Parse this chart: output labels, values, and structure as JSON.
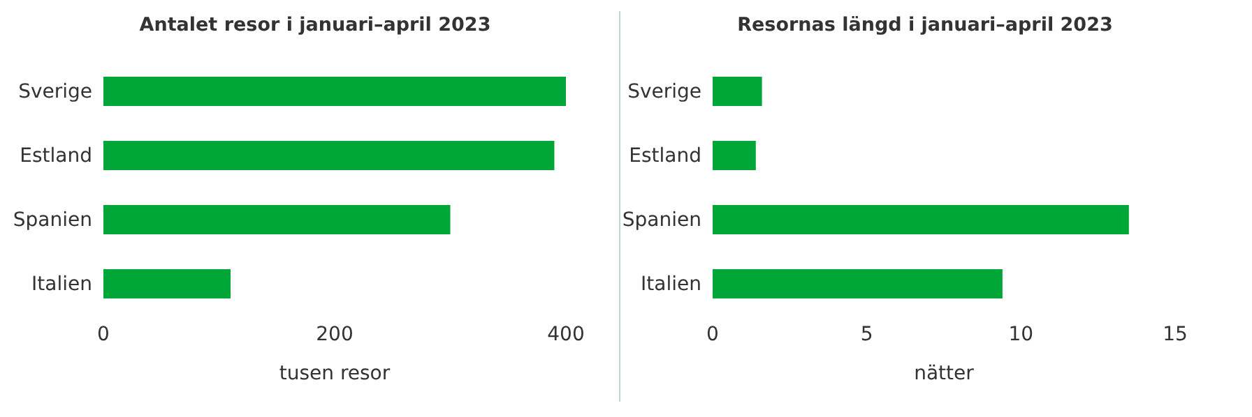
{
  "chart_data": [
    {
      "type": "bar",
      "orientation": "horizontal",
      "title": "Antalet resor i januari–april 2023",
      "xlabel": "tusen resor",
      "categories": [
        "Sverige",
        "Estland",
        "Spanien",
        "Italien"
      ],
      "values": [
        400,
        390,
        300,
        110
      ],
      "color": "#00a637",
      "xlim": [
        0,
        400
      ],
      "xticks": [
        0,
        200,
        400
      ],
      "grid": false
    },
    {
      "type": "bar",
      "orientation": "horizontal",
      "title": "Resornas längd i januari–april 2023",
      "xlabel": "nätter",
      "categories": [
        "Sverige",
        "Estland",
        "Spanien",
        "Italien"
      ],
      "values": [
        1.6,
        1.4,
        13.5,
        9.4
      ],
      "color": "#00a637",
      "xlim": [
        0,
        15
      ],
      "xticks": [
        0,
        5,
        10,
        15
      ],
      "grid": false
    }
  ]
}
